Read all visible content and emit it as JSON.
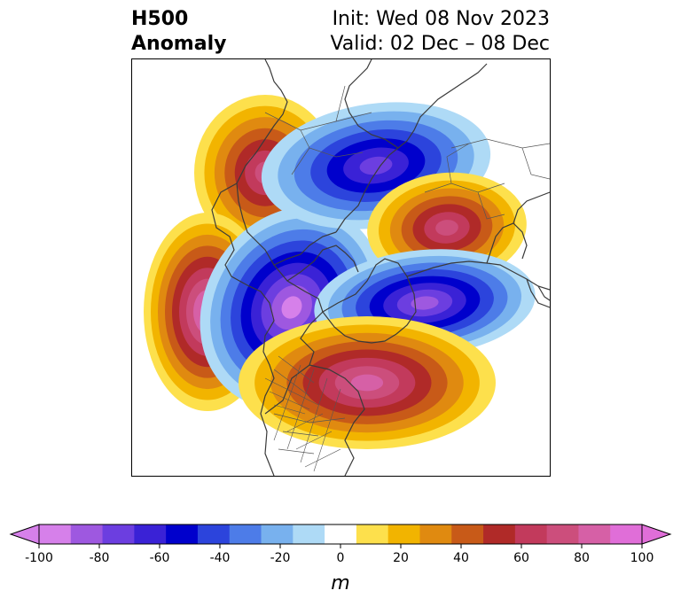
{
  "title": {
    "left_line1": "H500",
    "left_line2": "Anomaly",
    "right_line1": "Init: Wed 08 Nov 2023",
    "right_line2": "Valid: 02 Dec – 08 Dec"
  },
  "colorbar": {
    "unit_label": "m",
    "ticks": [
      "-100",
      "-80",
      "-60",
      "-40",
      "-20",
      "0",
      "20",
      "40",
      "60",
      "80",
      "100"
    ],
    "bins": [
      -100,
      -90,
      -80,
      -70,
      -60,
      -50,
      -40,
      -30,
      -20,
      -10,
      10,
      20,
      30,
      40,
      50,
      60,
      70,
      80,
      90,
      100
    ],
    "colors": [
      "#d680ea",
      "#9e58e0",
      "#6c3ee0",
      "#3a22d6",
      "#0000cc",
      "#2c44dc",
      "#4d7ce8",
      "#78b1ee",
      "#aedaf6",
      "#ffffff",
      "#fde04c",
      "#f2b400",
      "#e08a10",
      "#c85a18",
      "#b02a28",
      "#c23a5c",
      "#cc4e7c",
      "#d660a6",
      "#e06ed8"
    ],
    "extend_low_color": "#d680ea",
    "extend_high_color": "#e06ed8"
  },
  "anomalies": [
    {
      "id": "alaska-ridge",
      "sign": "positive",
      "peak_m": 70
    },
    {
      "id": "pacific-ridge",
      "sign": "positive",
      "peak_m": 95
    },
    {
      "id": "west-canada-trough",
      "sign": "negative",
      "peak_m": -100
    },
    {
      "id": "siberia-trough",
      "sign": "negative",
      "peak_m": -75
    },
    {
      "id": "europe-ridge",
      "sign": "positive",
      "peak_m": 75
    },
    {
      "id": "north-atlantic-trough",
      "sign": "negative",
      "peak_m": -80
    },
    {
      "id": "east-us-ridge",
      "sign": "positive",
      "peak_m": 80
    }
  ]
}
